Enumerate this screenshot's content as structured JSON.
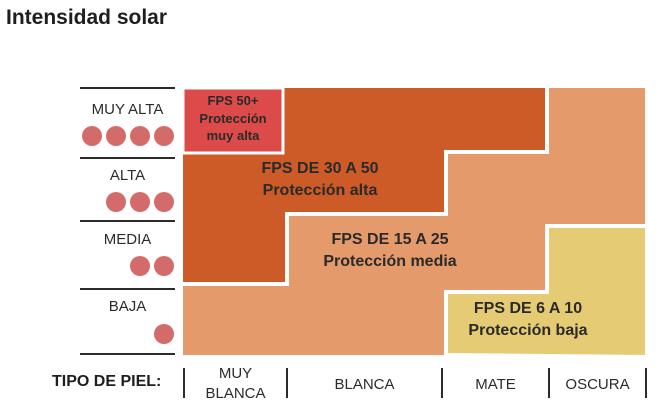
{
  "title": "Intensidad solar",
  "levels": [
    {
      "label": "MUY ALTA",
      "dots": 4
    },
    {
      "label": "ALTA",
      "dots": 3
    },
    {
      "label": "MEDIA",
      "dots": 2
    },
    {
      "label": "BAJA",
      "dots": 1
    }
  ],
  "zones": [
    {
      "line1": "FPS 50+",
      "line2": "Protección",
      "line3": "muy alta",
      "color": "#dd4a4a"
    },
    {
      "line1": "FPS DE 30 A 50",
      "line2": "Protección alta",
      "color": "#cd5b28"
    },
    {
      "line1": "FPS DE 15 A 25",
      "line2": "Protección media",
      "color": "#e59a6b"
    },
    {
      "line1": "FPS DE 6 A 10",
      "line2": "Protección baja",
      "color": "#e5cc74"
    }
  ],
  "skin": {
    "title": "TIPO DE PIEL:",
    "types": [
      {
        "line1": "MUY",
        "line2": "BLANCA"
      },
      {
        "line1": "BLANCA"
      },
      {
        "line1": "MATE"
      },
      {
        "line1": "OSCURA"
      }
    ]
  }
}
